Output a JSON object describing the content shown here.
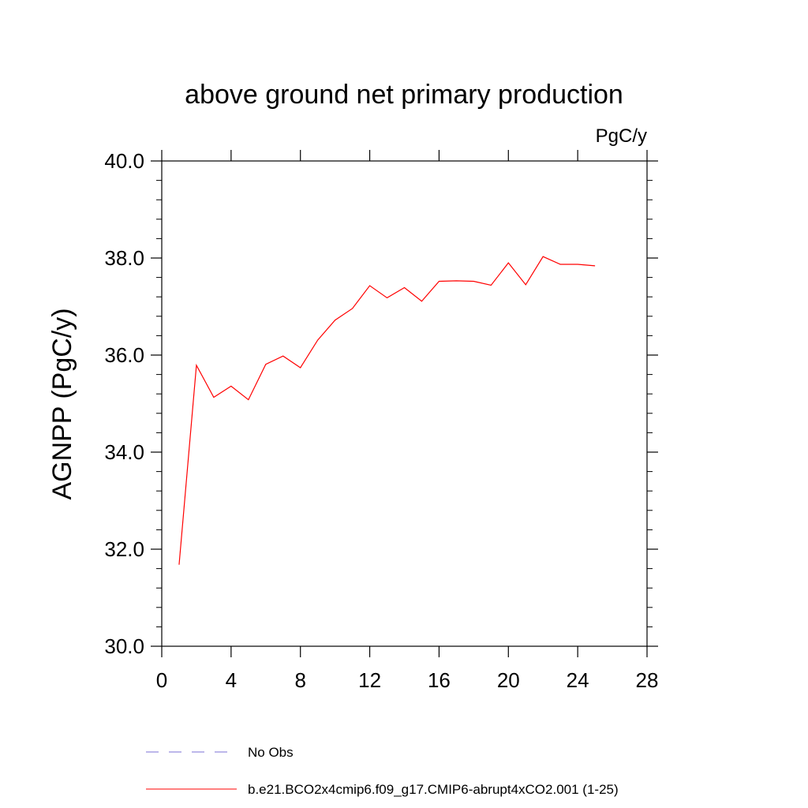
{
  "chart_data": {
    "type": "line",
    "title": "above ground net primary production",
    "units_label": "PgC/y",
    "ylabel": "AGNPP  (PgC/y)",
    "xlabel": "",
    "xlim": [
      0,
      28
    ],
    "ylim": [
      30,
      40
    ],
    "x_ticks": [
      0,
      4,
      8,
      12,
      16,
      20,
      24,
      28
    ],
    "x_tick_labels": [
      "0",
      "4",
      "8",
      "12",
      "16",
      "20",
      "24",
      "28"
    ],
    "y_ticks": [
      30,
      32,
      34,
      36,
      38,
      40
    ],
    "y_tick_labels": [
      "30.0",
      "32.0",
      "34.0",
      "36.0",
      "38.0",
      "40.0"
    ],
    "series": [
      {
        "name": "b.e21.BCO2x4cmip6.f09_g17.CMIP6-abrupt4xCO2.001 (1-25)",
        "color": "#ff0000",
        "x": [
          1,
          2,
          3,
          4,
          5,
          6,
          7,
          8,
          9,
          10,
          11,
          12,
          13,
          14,
          15,
          16,
          17,
          18,
          19,
          20,
          21,
          22,
          23,
          24,
          25
        ],
        "values": [
          31.68,
          35.79,
          35.13,
          35.36,
          35.08,
          35.81,
          35.98,
          35.74,
          36.31,
          36.72,
          36.96,
          37.43,
          37.18,
          37.39,
          37.11,
          37.52,
          37.53,
          37.52,
          37.44,
          37.9,
          37.45,
          38.03,
          37.87,
          37.87,
          37.84
        ]
      }
    ],
    "legend": [
      {
        "label": "No Obs",
        "style": "dashed",
        "color": "#7b6fd6"
      },
      {
        "label": "b.e21.BCO2x4cmip6.f09_g17.CMIP6-abrupt4xCO2.001 (1-25)",
        "style": "solid",
        "color": "#ff0000"
      }
    ],
    "legend_position": "bottom"
  }
}
